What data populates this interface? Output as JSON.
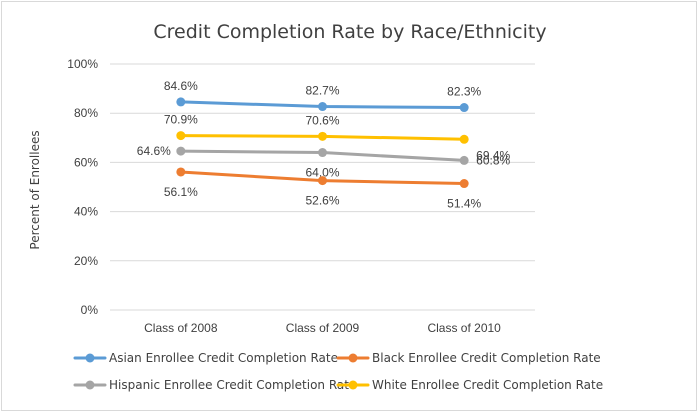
{
  "chart_data": {
    "type": "line",
    "title": "Credit Completion Rate by Race/Ethnicity",
    "xlabel": "",
    "ylabel": "Percent of Enrollees",
    "categories": [
      "Class of 2008",
      "Class of 2009",
      "Class of 2010"
    ],
    "ylim": [
      0,
      100
    ],
    "yticks": [
      0,
      20,
      40,
      60,
      80,
      100
    ],
    "ytick_labels": [
      "0%",
      "20%",
      "40%",
      "60%",
      "80%",
      "100%"
    ],
    "grid": true,
    "legend_position": "bottom",
    "series": [
      {
        "name": "Asian Enrollee Credit Completion Rate",
        "color": "#5b9bd5",
        "values": [
          84.6,
          82.7,
          82.3
        ],
        "labels": [
          "84.6%",
          "82.7%",
          "82.3%"
        ],
        "label_pos": [
          "above",
          "above",
          "above"
        ]
      },
      {
        "name": "Black Enrollee Credit Completion Rate",
        "color": "#ed7d31",
        "values": [
          56.1,
          52.6,
          51.4
        ],
        "labels": [
          "56.1%",
          "52.6%",
          "51.4%"
        ],
        "label_pos": [
          "below",
          "below",
          "below"
        ]
      },
      {
        "name": "Hispanic Enrollee Credit Completion Rate",
        "color": "#a5a5a5",
        "values": [
          64.6,
          64.0,
          60.8
        ],
        "labels": [
          "64.6%",
          "64.0%",
          "60.8%"
        ],
        "label_pos": [
          "left",
          "below",
          "right"
        ]
      },
      {
        "name": "White Enrollee Credit Completion Rate",
        "color": "#ffc000",
        "values": [
          70.9,
          70.6,
          69.4
        ],
        "labels": [
          "70.9%",
          "70.6%",
          "69.4%"
        ],
        "label_pos": [
          "above",
          "above",
          "right-below"
        ]
      }
    ]
  }
}
